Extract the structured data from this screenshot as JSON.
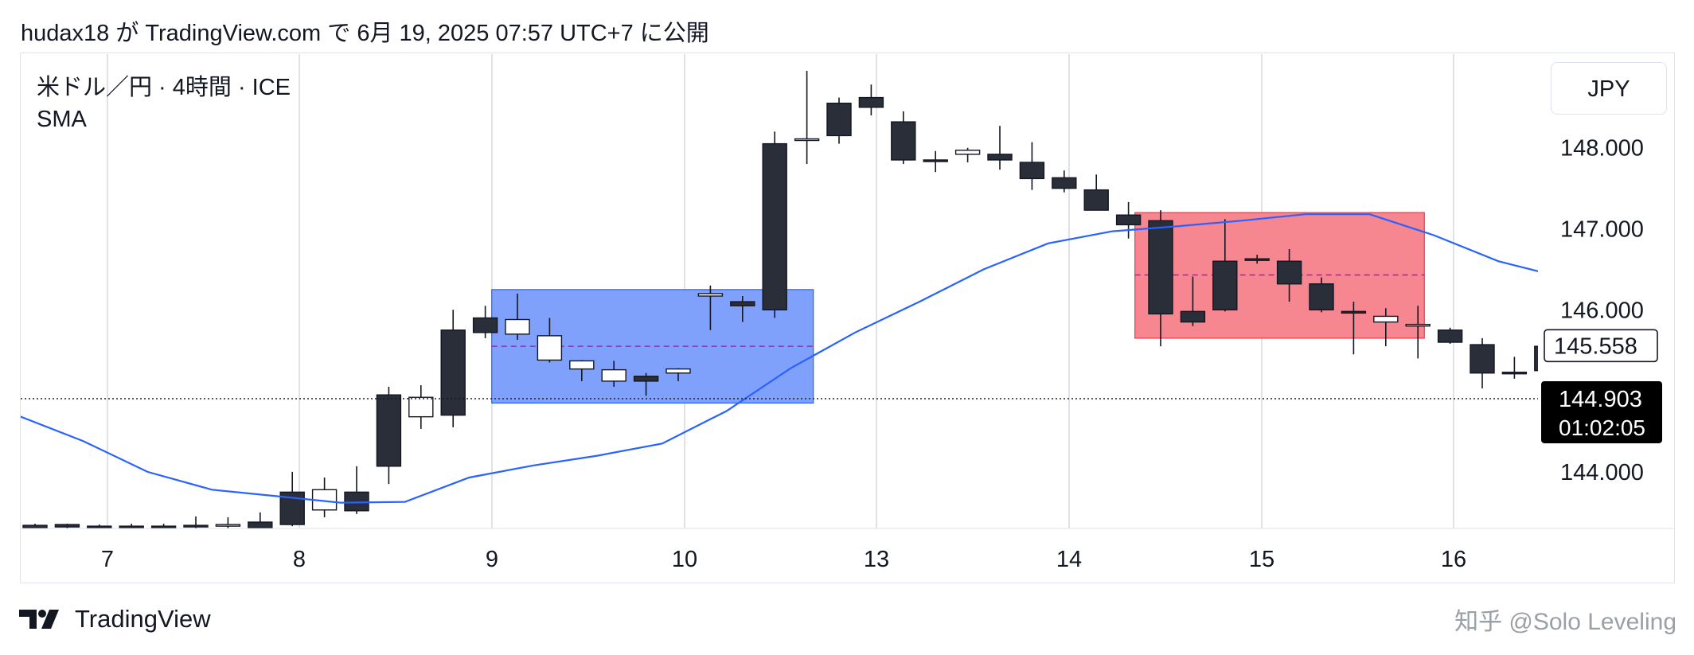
{
  "header": {
    "publish_line": "hudax18 が TradingView.com で 6月 19, 2025 07:57 UTC+7 に公開"
  },
  "legend": {
    "symbol": "米ドル／円 · 4時間 · ICE",
    "indicator": "SMA"
  },
  "currency_button": "JPY",
  "price_tags": {
    "marker_price": "145.558",
    "last_price": "144.903",
    "countdown": "01:02:05"
  },
  "footer": {
    "brand": "TradingView",
    "watermark": "知乎 @Solo Leveling"
  },
  "colors": {
    "bull_fill": "#ffffff",
    "bear_fill": "#2a2e39",
    "candle_border": "#131722",
    "sma": "#2962ff",
    "box_blue": "#7fa0fb",
    "box_red": "#f6868f",
    "midline": "#9c27b0",
    "last_price_bg": "#000000"
  },
  "icons": {
    "logo": "tradingview-logo-icon"
  },
  "chart_data": {
    "type": "candlestick",
    "x_tick_labels": [
      "7",
      "8",
      "9",
      "10",
      "13",
      "14",
      "15",
      "16"
    ],
    "y_tick_labels": [
      "148.000",
      "147.000",
      "146.000",
      "144.000"
    ],
    "ylim": [
      143.3,
      148.9
    ],
    "grid": {
      "vertical": true,
      "horizontal": false
    },
    "last_price": 144.903,
    "marker_price": 145.558,
    "candles": [
      [
        143.34,
        143.36,
        143.3,
        143.31
      ],
      [
        143.35,
        143.36,
        143.3,
        143.32
      ],
      [
        143.33,
        143.35,
        143.3,
        143.31
      ],
      [
        143.33,
        143.36,
        143.3,
        143.32
      ],
      [
        143.33,
        143.36,
        143.3,
        143.32
      ],
      [
        143.34,
        143.45,
        143.3,
        143.33
      ],
      [
        143.33,
        143.44,
        143.3,
        143.35
      ],
      [
        143.38,
        143.5,
        143.3,
        143.31
      ],
      [
        143.75,
        144.0,
        143.33,
        143.35
      ],
      [
        143.53,
        143.93,
        143.44,
        143.78
      ],
      [
        143.75,
        144.07,
        143.48,
        143.52
      ],
      [
        144.95,
        145.05,
        143.85,
        144.07
      ],
      [
        144.68,
        145.07,
        144.53,
        144.92
      ],
      [
        145.75,
        146.0,
        144.55,
        144.7
      ],
      [
        145.9,
        146.05,
        145.65,
        145.72
      ],
      [
        145.7,
        146.2,
        145.63,
        145.88
      ],
      [
        145.38,
        145.9,
        145.35,
        145.68
      ],
      [
        145.27,
        145.38,
        145.12,
        145.37
      ],
      [
        145.12,
        145.37,
        145.05,
        145.26
      ],
      [
        145.18,
        145.22,
        144.94,
        145.12
      ],
      [
        145.22,
        145.28,
        145.12,
        145.27
      ],
      [
        146.17,
        146.3,
        145.75,
        146.2
      ],
      [
        146.1,
        146.17,
        145.85,
        146.05
      ],
      [
        148.05,
        148.2,
        145.9,
        146.0
      ],
      [
        148.1,
        148.95,
        147.8,
        148.11
      ],
      [
        148.55,
        148.62,
        148.05,
        148.15
      ],
      [
        148.62,
        148.78,
        148.4,
        148.5
      ],
      [
        148.32,
        148.45,
        147.8,
        147.85
      ],
      [
        147.85,
        147.96,
        147.7,
        147.83
      ],
      [
        147.92,
        148.0,
        147.82,
        147.97
      ],
      [
        147.92,
        148.27,
        147.73,
        147.85
      ],
      [
        147.82,
        148.07,
        147.48,
        147.62
      ],
      [
        147.63,
        147.72,
        147.45,
        147.5
      ],
      [
        147.48,
        147.67,
        147.24,
        147.23
      ],
      [
        147.17,
        147.33,
        146.88,
        147.05
      ],
      [
        147.1,
        147.23,
        145.55,
        145.95
      ],
      [
        145.98,
        146.41,
        145.8,
        145.85
      ],
      [
        146.6,
        147.12,
        145.98,
        146.0
      ],
      [
        146.63,
        146.68,
        146.57,
        146.61
      ],
      [
        146.6,
        146.75,
        146.1,
        146.32
      ],
      [
        146.32,
        146.4,
        145.97,
        146.0
      ],
      [
        145.98,
        146.1,
        145.45,
        145.97
      ],
      [
        145.85,
        146.02,
        145.55,
        145.92
      ],
      [
        145.8,
        146.05,
        145.4,
        145.82
      ],
      [
        145.75,
        145.78,
        145.58,
        145.6
      ],
      [
        145.57,
        145.65,
        145.03,
        145.22
      ],
      [
        145.23,
        145.42,
        145.15,
        145.22
      ],
      [
        145.55,
        145.58,
        145.28,
        145.25
      ]
    ],
    "sma": [
      [
        -0.5,
        144.69
      ],
      [
        1.5,
        144.38
      ],
      [
        3.5,
        144.0
      ],
      [
        5.5,
        143.78
      ],
      [
        7.5,
        143.7
      ],
      [
        9.5,
        143.62
      ],
      [
        11.5,
        143.63
      ],
      [
        13.5,
        143.93
      ],
      [
        15.5,
        144.08
      ],
      [
        17.5,
        144.2
      ],
      [
        19.5,
        144.35
      ],
      [
        21.5,
        144.75
      ],
      [
        23.5,
        145.28
      ],
      [
        25.5,
        145.72
      ],
      [
        27.5,
        146.1
      ],
      [
        29.5,
        146.5
      ],
      [
        31.5,
        146.82
      ],
      [
        33.5,
        146.97
      ],
      [
        35.5,
        147.03
      ],
      [
        37.5,
        147.1
      ],
      [
        39.5,
        147.18
      ],
      [
        41.5,
        147.18
      ],
      [
        43.5,
        146.92
      ],
      [
        45.5,
        146.6
      ],
      [
        47.5,
        146.4
      ]
    ],
    "boxes": [
      {
        "color": "blue",
        "from_index": 14.2,
        "to_index": 24.2,
        "top": 146.25,
        "bottom": 144.85,
        "mid": 145.55
      },
      {
        "color": "red",
        "from_index": 34.2,
        "to_index": 43.2,
        "top": 147.2,
        "bottom": 145.65,
        "mid": 146.43
      }
    ]
  }
}
